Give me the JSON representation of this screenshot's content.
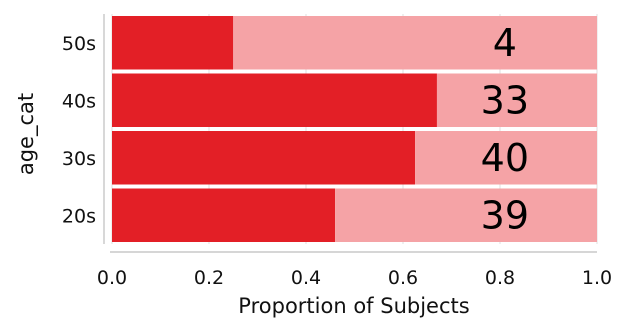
{
  "chart_data": {
    "type": "bar",
    "orientation": "horizontal",
    "stacked": true,
    "categories": [
      "50s",
      "40s",
      "30s",
      "20s"
    ],
    "series": [
      {
        "values": [
          0.25,
          0.67,
          0.625,
          0.46
        ],
        "color": "#e31f26"
      },
      {
        "values": [
          0.75,
          0.33,
          0.375,
          0.54
        ],
        "color": "#f5a3a6"
      }
    ],
    "count_labels": [
      "4",
      "33",
      "40",
      "39"
    ],
    "xlabel": "Proportion of Subjects",
    "ylabel": "age_cat",
    "xlim": [
      0.0,
      1.0
    ],
    "xticks": [
      "0.0",
      "0.2",
      "0.4",
      "0.6",
      "0.8",
      "1.0"
    ],
    "grid": true,
    "grid_color": "#e4e4e4"
  }
}
